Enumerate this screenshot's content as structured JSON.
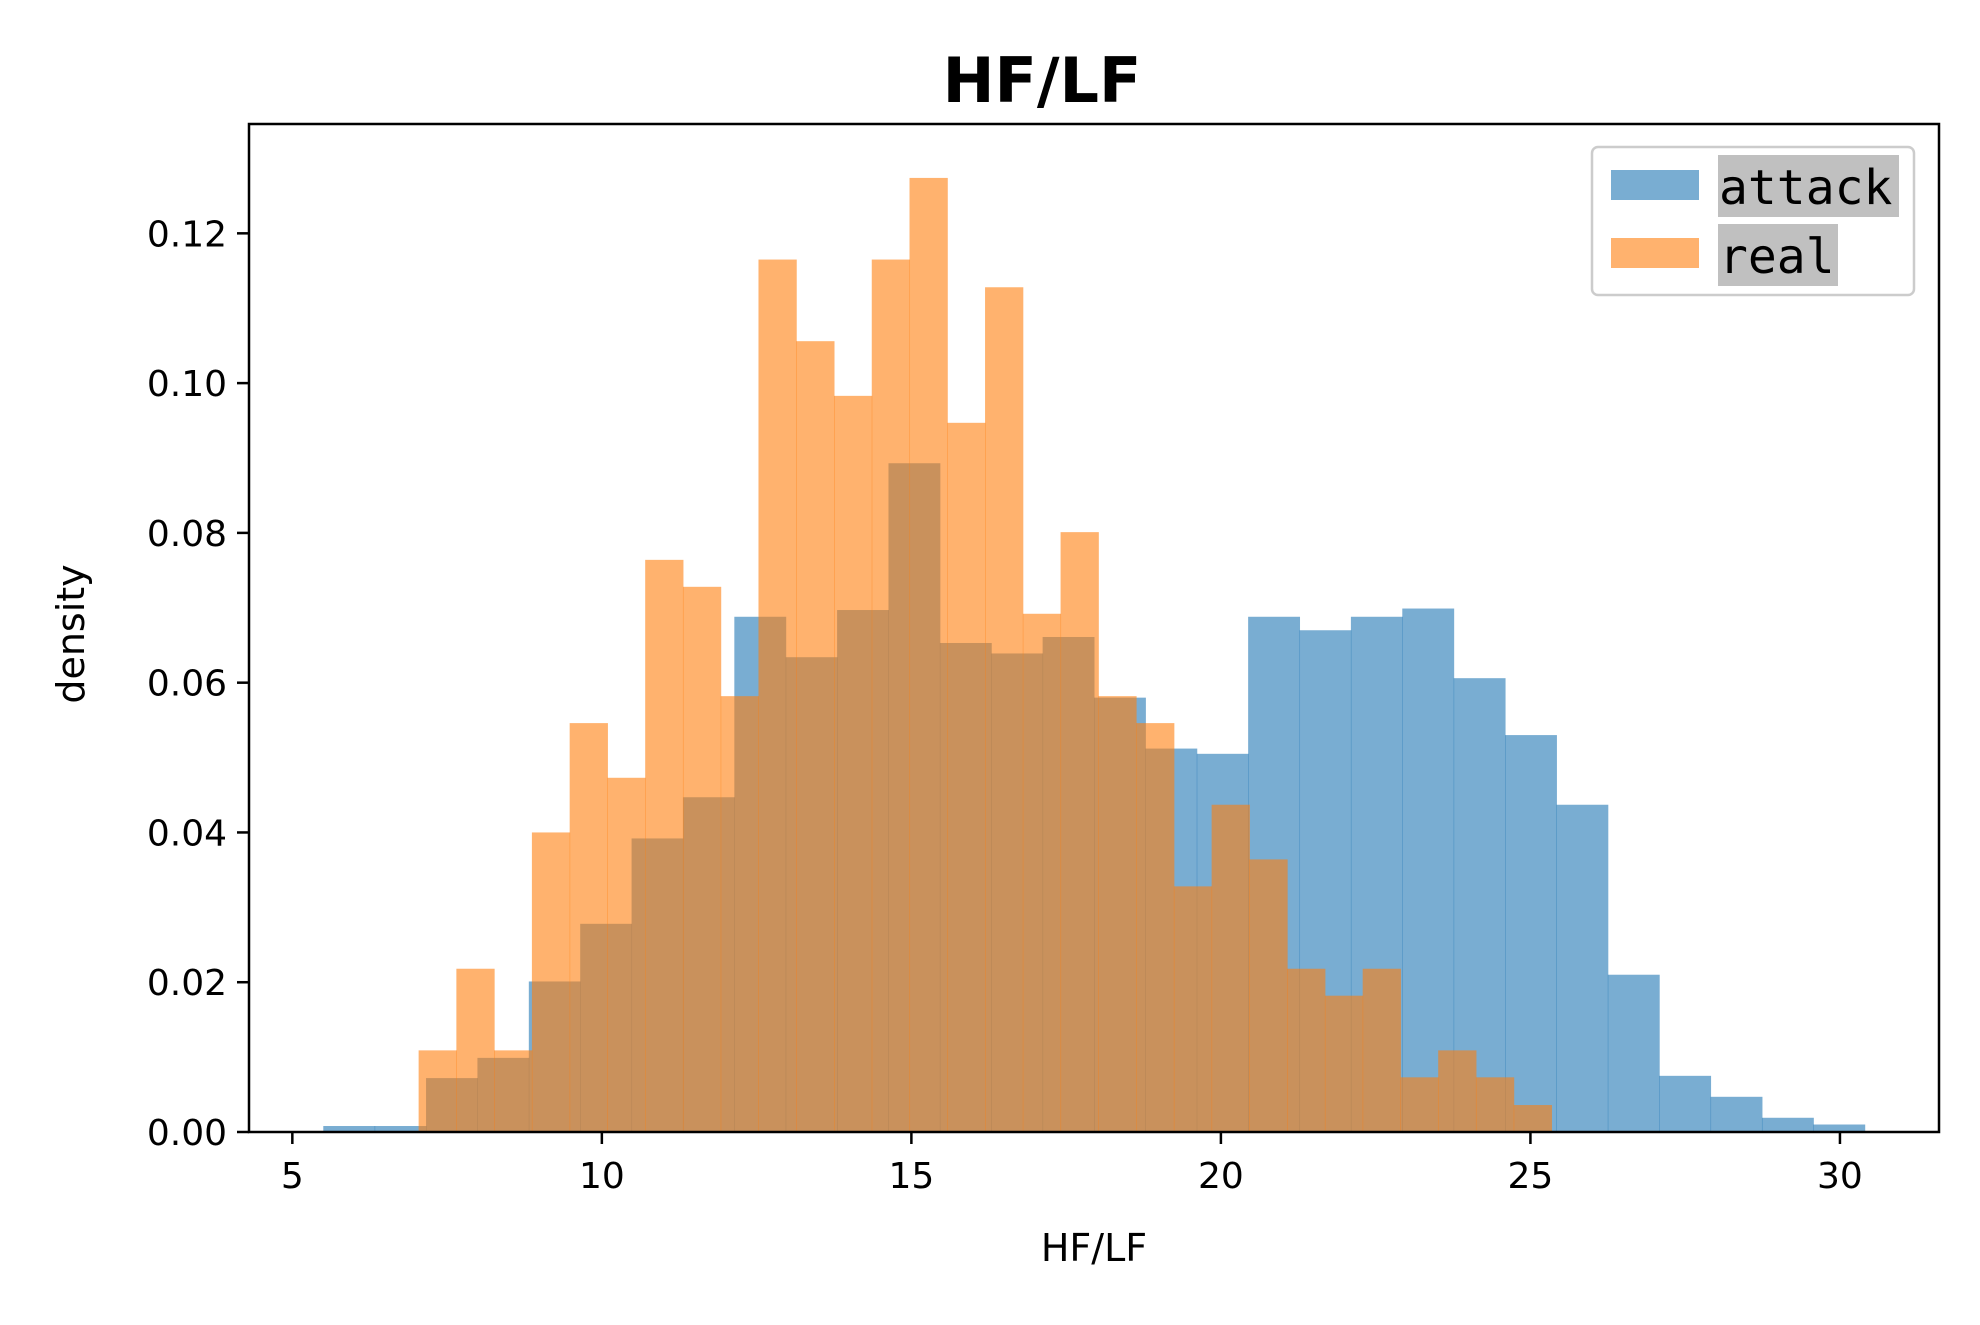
{
  "chart_data": {
    "type": "bar",
    "subtype": "overlaid-histogram",
    "title": "HF/LF",
    "xlabel": "HF/LF",
    "ylabel": "density",
    "xlim": [
      4.3,
      31.6
    ],
    "ylim": [
      0,
      0.1346
    ],
    "xticks": [
      5,
      10,
      15,
      20,
      25,
      30
    ],
    "yticks": [
      0.0,
      0.02,
      0.04,
      0.06,
      0.08,
      0.1,
      0.12
    ],
    "grid": false,
    "legend_position": "top-right",
    "series": [
      {
        "name": "attack",
        "color": "#1f77b4",
        "opacity": 0.6,
        "bin_edges": [
          5.5,
          6.33,
          7.16,
          7.99,
          8.82,
          9.65,
          10.48,
          11.31,
          12.14,
          12.97,
          13.8,
          14.63,
          15.46,
          16.29,
          17.12,
          17.95,
          18.78,
          19.61,
          20.44,
          21.27,
          22.1,
          22.93,
          23.76,
          24.59,
          25.42,
          26.25,
          27.08,
          27.91,
          28.74,
          29.57,
          30.4
        ],
        "values": [
          0.0008,
          0.0008,
          0.0072,
          0.0099,
          0.0201,
          0.0278,
          0.0392,
          0.0447,
          0.0688,
          0.0634,
          0.0697,
          0.0893,
          0.0653,
          0.0639,
          0.0661,
          0.058,
          0.0512,
          0.0505,
          0.0688,
          0.067,
          0.0688,
          0.0699,
          0.0606,
          0.053,
          0.0437,
          0.021,
          0.0075,
          0.0047,
          0.0019,
          0.001
        ]
      },
      {
        "name": "real",
        "color": "#ff7f0e",
        "opacity": 0.6,
        "bin_edges": [
          7.04,
          7.65,
          8.26,
          8.87,
          9.48,
          10.09,
          10.7,
          11.31,
          11.92,
          12.53,
          13.14,
          13.75,
          14.36,
          14.97,
          15.58,
          16.19,
          16.8,
          17.41,
          18.02,
          18.63,
          19.24,
          19.85,
          20.46,
          21.07,
          21.68,
          22.29,
          22.9,
          23.51,
          24.12,
          24.73,
          25.34
        ],
        "values": [
          0.0109,
          0.0218,
          0.0109,
          0.04,
          0.0546,
          0.0473,
          0.0764,
          0.0728,
          0.0582,
          0.1165,
          0.1056,
          0.0983,
          0.1165,
          0.1274,
          0.0947,
          0.1128,
          0.0692,
          0.0801,
          0.0582,
          0.0546,
          0.0328,
          0.0437,
          0.0364,
          0.0218,
          0.0182,
          0.0218,
          0.0073,
          0.0109,
          0.0073,
          0.0036
        ]
      }
    ]
  }
}
